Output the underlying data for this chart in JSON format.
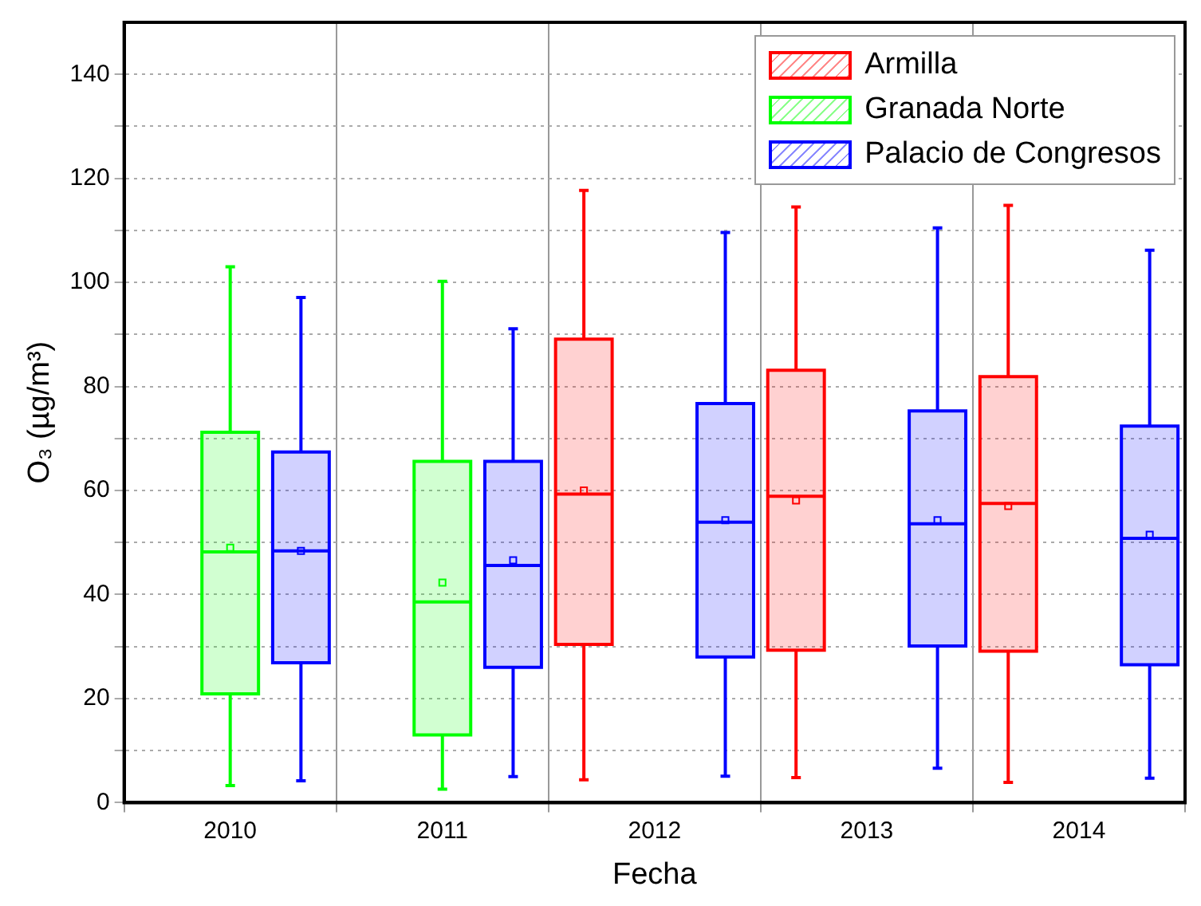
{
  "chart_data": {
    "type": "box",
    "xlabel": "Fecha",
    "ylabel": "O₃ (µg/m³)",
    "categories": [
      "2010",
      "2011",
      "2012",
      "2013",
      "2014"
    ],
    "ylim": [
      0,
      150
    ],
    "yticks": [
      0,
      {
        "value": 10,
        "label": null
      },
      20,
      {
        "value": 30,
        "label": null
      },
      40,
      {
        "value": 50,
        "label": null
      },
      60,
      {
        "value": 70,
        "label": null
      },
      80,
      {
        "value": 90,
        "label": null
      },
      100,
      {
        "value": 110,
        "label": null
      },
      120,
      {
        "value": 130,
        "label": null
      },
      140
    ],
    "grid": true,
    "legend": "top right",
    "series": [
      {
        "name": "Armilla",
        "color": "#ff0000",
        "boxes": [
          null,
          null,
          {
            "low": 4.4,
            "q1": 30.4,
            "median": 59.3,
            "q3": 89.1,
            "high": 117.7,
            "mean": 60.0
          },
          {
            "low": 4.8,
            "q1": 29.3,
            "median": 58.9,
            "q3": 83.1,
            "high": 114.5,
            "mean": 58.1
          },
          {
            "low": 3.9,
            "q1": 29.1,
            "median": 57.5,
            "q3": 81.9,
            "high": 114.8,
            "mean": 57.0
          }
        ]
      },
      {
        "name": "Granada Norte",
        "color": "#00ff00",
        "boxes": [
          {
            "low": 3.3,
            "q1": 20.9,
            "median": 48.2,
            "q3": 71.2,
            "high": 103.0,
            "mean": 49.0
          },
          {
            "low": 2.6,
            "q1": 13.0,
            "median": 38.6,
            "q3": 65.6,
            "high": 100.2,
            "mean": 42.3
          },
          null,
          null,
          null
        ]
      },
      {
        "name": "Palacio de Congresos",
        "color": "#0000ff",
        "boxes": [
          {
            "low": 4.2,
            "q1": 26.9,
            "median": 48.4,
            "q3": 67.4,
            "high": 97.1,
            "mean": 48.4
          },
          {
            "low": 5.0,
            "q1": 26.0,
            "median": 45.6,
            "q3": 65.6,
            "high": 91.1,
            "mean": 46.6
          },
          {
            "low": 5.1,
            "q1": 28.0,
            "median": 53.9,
            "q3": 76.7,
            "high": 109.6,
            "mean": 54.3
          },
          {
            "low": 6.6,
            "q1": 30.1,
            "median": 53.6,
            "q3": 75.3,
            "high": 110.5,
            "mean": 54.3
          },
          {
            "low": 4.7,
            "q1": 26.5,
            "median": 50.8,
            "q3": 72.4,
            "high": 106.2,
            "mean": 51.5
          }
        ]
      }
    ]
  }
}
